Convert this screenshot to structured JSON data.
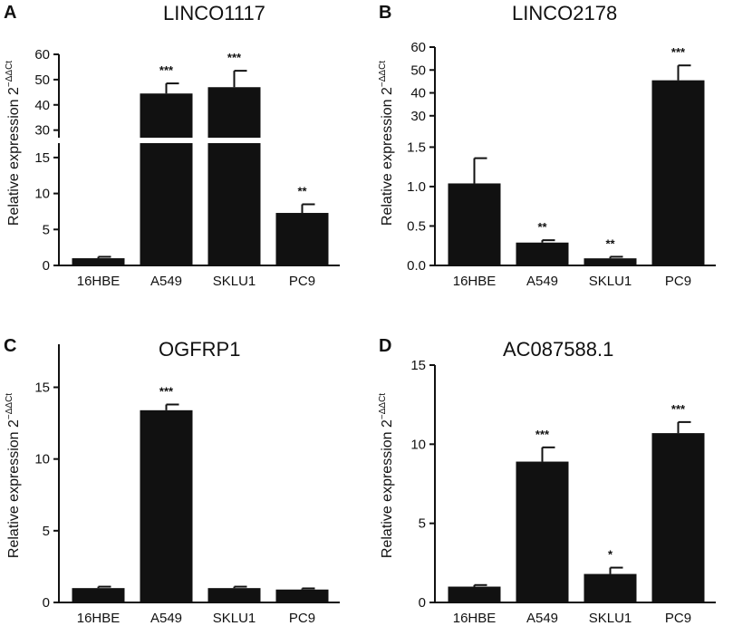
{
  "figure_ylabel": "Relative expression 2",
  "ylabel_superscript": "−ΔΔCt",
  "chart_data": [
    {
      "panel": "A",
      "type": "bar",
      "title": "LINCO1117",
      "categories": [
        "16HBE",
        "A549",
        "SKLU1",
        "PC9"
      ],
      "values": [
        1.0,
        44.5,
        47.0,
        7.3
      ],
      "errors": [
        0.2,
        4.0,
        6.5,
        1.2
      ],
      "significance": [
        "",
        "***",
        "***",
        "**"
      ],
      "broken_axis": true,
      "lower_range": [
        0,
        17
      ],
      "lower_ticks": [
        0,
        5,
        10,
        15
      ],
      "upper_range": [
        27,
        60
      ],
      "upper_ticks": [
        30,
        40,
        50,
        60
      ],
      "ylabel": "Relative expression 2−ΔΔCt"
    },
    {
      "panel": "B",
      "type": "bar",
      "title": "LINCO2178",
      "categories": [
        "16HBE",
        "A549",
        "SKLU1",
        "PC9"
      ],
      "values": [
        1.04,
        0.29,
        0.09,
        45.5
      ],
      "errors": [
        0.32,
        0.03,
        0.02,
        6.5
      ],
      "significance": [
        "",
        "**",
        "**",
        "***"
      ],
      "broken_axis": true,
      "lower_range": [
        0,
        1.7
      ],
      "lower_ticks": [
        0.0,
        0.5,
        1.0,
        1.5
      ],
      "upper_range": [
        22,
        60
      ],
      "upper_ticks": [
        30,
        40,
        50,
        60
      ],
      "ylabel": "Relative expression 2−ΔΔCt"
    },
    {
      "panel": "C",
      "type": "bar",
      "title": "OGFRP1",
      "categories": [
        "16HBE",
        "A549",
        "SKLU1",
        "PC9"
      ],
      "values": [
        1.0,
        13.4,
        1.0,
        0.9
      ],
      "errors": [
        0.1,
        0.4,
        0.1,
        0.08
      ],
      "significance": [
        "",
        "***",
        "",
        ""
      ],
      "broken_axis": false,
      "ylim": [
        0,
        18
      ],
      "ticks": [
        0,
        5,
        10,
        15
      ],
      "ylabel": "Relative expression 2−ΔΔCt"
    },
    {
      "panel": "D",
      "type": "bar",
      "title": "AC087588.1",
      "categories": [
        "16HBE",
        "A549",
        "SKLU1",
        "PC9"
      ],
      "values": [
        1.0,
        8.9,
        1.8,
        10.7
      ],
      "errors": [
        0.1,
        0.9,
        0.4,
        0.7
      ],
      "significance": [
        "",
        "***",
        "*",
        "***"
      ],
      "broken_axis": false,
      "ylim": [
        0,
        15
      ],
      "ticks": [
        0,
        5,
        10,
        15
      ],
      "ylabel": "Relative expression 2−ΔΔCt"
    }
  ],
  "colors": {
    "bar": "#111111",
    "axis": "#111111",
    "break_gap": "#ffffff"
  }
}
